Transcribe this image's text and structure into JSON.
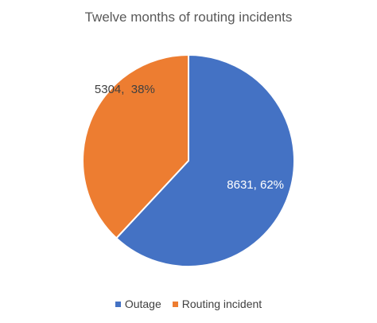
{
  "chart_data": {
    "type": "pie",
    "title": "Twelve months of routing incidents",
    "series": [
      {
        "name": "Outage",
        "value": 8631,
        "percent": "62%",
        "label": "8631, 62%",
        "color": "#4472C4"
      },
      {
        "name": "Routing incident",
        "value": 5304,
        "percent": "38%",
        "label": "5304,  38%",
        "color": "#ED7D31"
      }
    ],
    "legend_position": "bottom"
  }
}
